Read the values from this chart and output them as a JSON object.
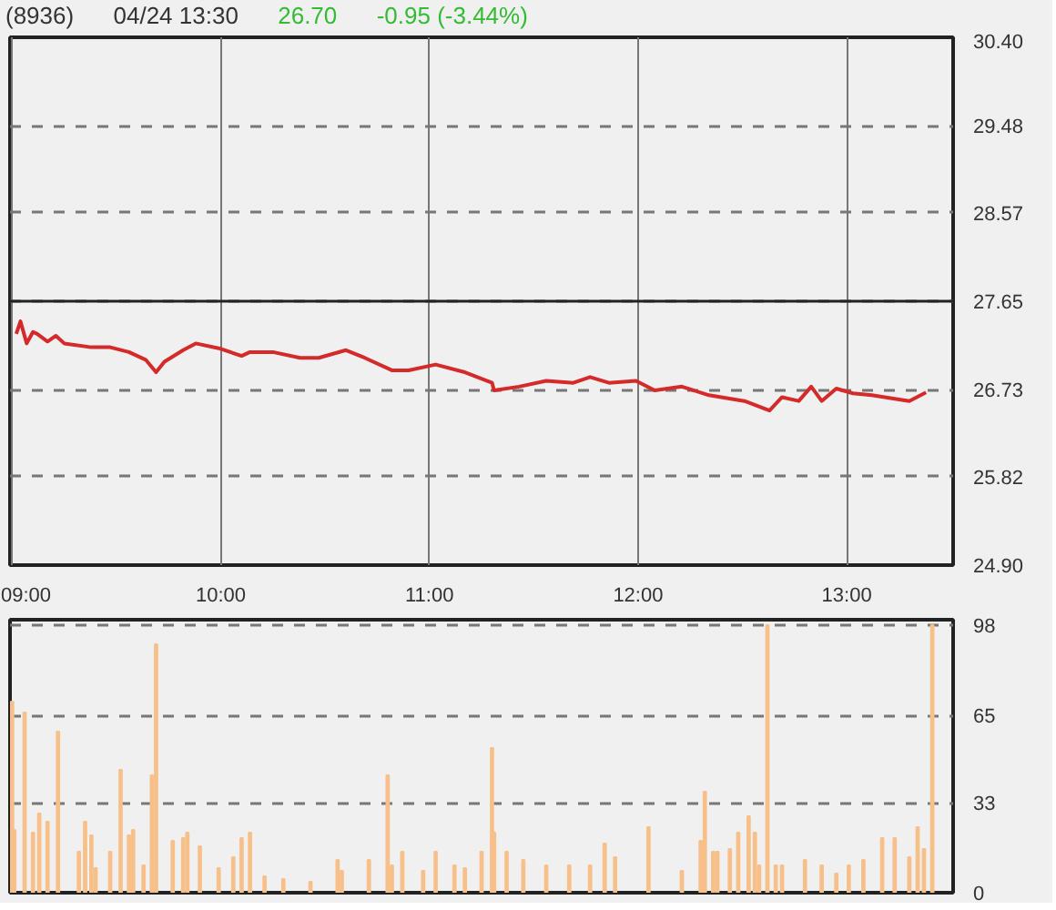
{
  "chart_data": [
    {
      "type": "line",
      "title": "(8936)",
      "subtitle": "04/24 13:30",
      "annotations": [
        "26.70",
        "-0.95 (-3.44%)"
      ],
      "series": [
        {
          "color": "#d42a2a",
          "x": [
            9.02,
            9.04,
            9.07,
            9.1,
            9.12,
            9.17,
            9.21,
            9.25,
            9.38,
            9.47,
            9.56,
            9.64,
            9.69,
            9.73,
            9.82,
            9.88,
            9.99,
            10.1,
            10.14,
            10.25,
            10.38,
            10.47,
            10.6,
            10.69,
            10.82,
            10.9,
            11.03,
            11.17,
            11.3,
            11.31,
            11.43,
            11.56,
            11.69,
            11.77,
            11.86,
            11.99,
            12.08,
            12.21,
            12.34,
            12.51,
            12.63,
            12.69,
            12.77,
            12.83,
            12.88,
            12.95,
            13.03,
            13.12,
            13.3,
            13.38
          ],
          "values": [
            27.31,
            27.44,
            27.21,
            27.33,
            27.31,
            27.23,
            27.29,
            27.21,
            27.17,
            27.17,
            27.12,
            27.04,
            26.91,
            27.02,
            27.14,
            27.21,
            27.16,
            27.08,
            27.12,
            27.12,
            27.06,
            27.06,
            27.14,
            27.06,
            26.93,
            26.93,
            26.99,
            26.91,
            26.8,
            26.72,
            26.76,
            26.82,
            26.8,
            26.86,
            26.8,
            26.82,
            26.72,
            26.76,
            26.67,
            26.61,
            26.51,
            26.65,
            26.61,
            26.76,
            26.61,
            26.74,
            26.69,
            26.67,
            26.61,
            26.7
          ]
        }
      ],
      "xlim": [
        8.99,
        13.51
      ],
      "xticks": [
        {
          "value": 9,
          "label": "09:00"
        },
        {
          "value": 10,
          "label": "10:00"
        },
        {
          "value": 11,
          "label": "11:00"
        },
        {
          "value": 12,
          "label": "12:00"
        },
        {
          "value": 13,
          "label": "13:00"
        }
      ],
      "ylim": [
        24.9,
        30.4
      ],
      "yticks": [
        {
          "value": 24.9,
          "label": "24.90"
        },
        {
          "value": 25.82,
          "label": "25.82"
        },
        {
          "value": 26.73,
          "label": "26.73"
        },
        {
          "value": 27.65,
          "label": "27.65"
        },
        {
          "value": 28.57,
          "label": "28.57"
        },
        {
          "value": 29.48,
          "label": "29.48"
        },
        {
          "value": 30.4,
          "label": "30.40"
        }
      ],
      "ref_lines": [
        {
          "axis": "y",
          "value": 27.65,
          "color": "#222222",
          "line_style": "solid"
        }
      ],
      "grid": true,
      "marker": "none",
      "line_style": "solid"
    },
    {
      "type": "bar",
      "tick_labels": "y",
      "grid": "y",
      "series": [
        {
          "color": "#f7c08a",
          "x": [
            9.0,
            9.01,
            9.06,
            9.1,
            9.13,
            9.17,
            9.22,
            9.32,
            9.35,
            9.38,
            9.4,
            9.47,
            9.52,
            9.56,
            9.58,
            9.63,
            9.67,
            9.69,
            9.77,
            9.82,
            9.84,
            9.9,
            9.99,
            10.06,
            10.1,
            10.14,
            10.21,
            10.3,
            10.43,
            10.56,
            10.58,
            10.71,
            10.8,
            10.82,
            10.87,
            10.97,
            11.03,
            11.12,
            11.17,
            11.25,
            11.3,
            11.31,
            11.37,
            11.45,
            11.56,
            11.67,
            11.77,
            11.84,
            11.89,
            12.05,
            12.21,
            12.3,
            12.32,
            12.36,
            12.38,
            12.44,
            12.48,
            12.53,
            12.56,
            12.58,
            12.62,
            12.66,
            12.69,
            12.8,
            12.88,
            12.95,
            13.01,
            13.08,
            13.17,
            13.23,
            13.3,
            13.34,
            13.37,
            13.41
          ],
          "values": [
            70,
            23,
            66,
            22,
            29,
            26,
            59,
            15,
            26,
            21,
            9,
            15,
            45,
            21,
            23,
            10,
            43,
            91,
            19,
            20,
            22,
            17,
            9,
            13,
            20,
            22,
            6,
            5,
            4,
            12,
            8,
            12,
            43,
            10,
            15,
            8,
            15,
            10,
            9,
            15,
            53,
            22,
            15,
            12,
            10,
            10,
            10,
            18,
            13,
            24,
            8,
            19,
            37,
            15,
            15,
            16,
            22,
            28,
            22,
            10,
            98,
            10,
            10,
            12,
            10,
            7,
            10,
            12,
            20,
            20,
            13,
            24,
            16,
            98
          ]
        }
      ],
      "xlim": [
        8.99,
        13.51
      ],
      "xticks": [
        {
          "value": 9,
          "label": null
        },
        {
          "value": 10,
          "label": null
        },
        {
          "value": 11,
          "label": null
        },
        {
          "value": 12,
          "label": null
        },
        {
          "value": 13,
          "label": null
        }
      ],
      "ylim": [
        0,
        100
      ],
      "yticks": [
        0,
        33,
        65,
        98
      ]
    }
  ]
}
